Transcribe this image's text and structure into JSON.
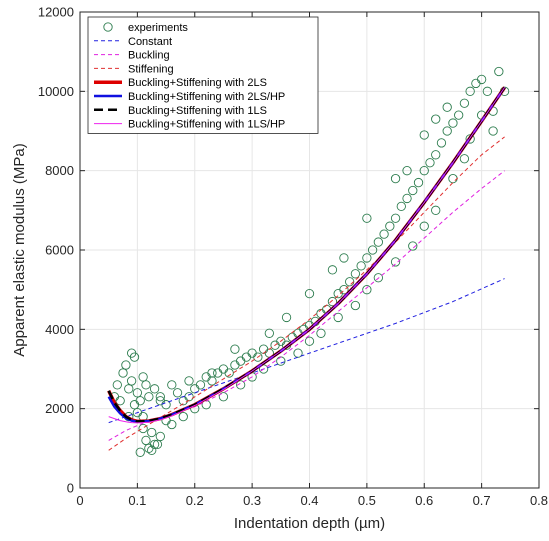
{
  "chart_data": {
    "type": "scatter",
    "title": "",
    "xlabel": "Indentation depth (µm)",
    "ylabel": "Apparent elastic modulus (MPa)",
    "xlim": [
      0,
      0.8
    ],
    "ylim": [
      0,
      12000
    ],
    "xticks": [
      0,
      0.1,
      0.2,
      0.3,
      0.4,
      0.5,
      0.6,
      0.7,
      0.8
    ],
    "xtick_labels": [
      "0",
      "0.1",
      "0.2",
      "0.3",
      "0.4",
      "0.5",
      "0.6",
      "0.7",
      "0.8"
    ],
    "yticks": [
      0,
      2000,
      4000,
      6000,
      8000,
      10000,
      12000
    ],
    "ytick_labels": [
      "0",
      "2000",
      "4000",
      "6000",
      "8000",
      "10000",
      "12000"
    ],
    "grid": true,
    "legend_position": "top-left",
    "scatter": {
      "name": "experiments",
      "color": "#2e7d4f",
      "marker": "open-circle",
      "x": [
        0.06,
        0.065,
        0.07,
        0.075,
        0.08,
        0.085,
        0.09,
        0.095,
        0.1,
        0.105,
        0.11,
        0.115,
        0.12,
        0.13,
        0.14,
        0.15,
        0.16,
        0.17,
        0.18,
        0.19,
        0.2,
        0.21,
        0.22,
        0.23,
        0.24,
        0.25,
        0.26,
        0.27,
        0.28,
        0.29,
        0.3,
        0.31,
        0.32,
        0.33,
        0.34,
        0.35,
        0.36,
        0.37,
        0.38,
        0.39,
        0.4,
        0.41,
        0.42,
        0.43,
        0.44,
        0.45,
        0.46,
        0.47,
        0.48,
        0.49,
        0.5,
        0.51,
        0.52,
        0.53,
        0.54,
        0.55,
        0.56,
        0.57,
        0.58,
        0.59,
        0.6,
        0.61,
        0.62,
        0.63,
        0.64,
        0.65,
        0.66,
        0.67,
        0.68,
        0.69,
        0.7,
        0.71,
        0.72,
        0.73,
        0.74,
        0.085,
        0.09,
        0.095,
        0.1,
        0.11,
        0.12,
        0.125,
        0.13,
        0.14,
        0.15,
        0.16,
        0.18,
        0.2,
        0.22,
        0.25,
        0.28,
        0.3,
        0.32,
        0.35,
        0.38,
        0.4,
        0.42,
        0.45,
        0.48,
        0.5,
        0.52,
        0.55,
        0.58,
        0.6,
        0.62,
        0.65,
        0.67,
        0.68,
        0.7,
        0.72,
        0.6,
        0.62,
        0.64,
        0.55,
        0.57,
        0.5,
        0.46,
        0.44,
        0.4,
        0.36,
        0.33,
        0.27,
        0.23,
        0.19,
        0.14,
        0.11,
        0.105,
        0.115,
        0.125,
        0.135
      ],
      "y": [
        2300,
        2600,
        2200,
        2900,
        3100,
        2500,
        2700,
        3300,
        2400,
        2200,
        2800,
        2600,
        2300,
        2500,
        2300,
        2100,
        2600,
        2400,
        2200,
        2700,
        2500,
        2600,
        2800,
        2700,
        2900,
        3000,
        2900,
        3100,
        3200,
        3300,
        3400,
        3300,
        3500,
        3400,
        3600,
        3700,
        3600,
        3800,
        3900,
        4000,
        4100,
        4200,
        4400,
        4500,
        4700,
        4900,
        5000,
        5200,
        5400,
        5600,
        5800,
        6000,
        6200,
        6400,
        6600,
        6800,
        7100,
        7300,
        7500,
        7700,
        8000,
        8200,
        8400,
        8700,
        9000,
        9200,
        9400,
        9700,
        10000,
        10200,
        10300,
        10000,
        9500,
        10500,
        10000,
        1800,
        3400,
        2100,
        1900,
        1500,
        1000,
        950,
        1100,
        1300,
        1700,
        1600,
        1800,
        2000,
        2100,
        2300,
        2600,
        2800,
        3000,
        3200,
        3400,
        3700,
        3900,
        4300,
        4600,
        5000,
        5300,
        5700,
        6100,
        6600,
        7000,
        7800,
        8300,
        8800,
        9400,
        9000,
        8900,
        9300,
        9600,
        7800,
        8000,
        6800,
        5800,
        5500,
        4900,
        4300,
        3900,
        3500,
        2900,
        2300,
        2200,
        1800,
        900,
        1200,
        1400,
        1100
      ]
    },
    "series": [
      {
        "name": "Constant",
        "color": "#2020e0",
        "style": "dashed",
        "width": 1,
        "x": [
          0.05,
          0.15,
          0.25,
          0.35,
          0.45,
          0.55,
          0.65,
          0.74
        ],
        "y": [
          1650,
          2150,
          2650,
          3150,
          3650,
          4150,
          4700,
          5280
        ]
      },
      {
        "name": "Buckling",
        "color": "#e020e0",
        "style": "dashed",
        "width": 1,
        "x": [
          0.05,
          0.08,
          0.12,
          0.16,
          0.2,
          0.25,
          0.3,
          0.35,
          0.4,
          0.45,
          0.5,
          0.55,
          0.6,
          0.65,
          0.7,
          0.74
        ],
        "y": [
          1200,
          1450,
          1700,
          1850,
          2050,
          2400,
          2800,
          3300,
          3850,
          4450,
          5050,
          5650,
          6300,
          6950,
          7550,
          8000
        ]
      },
      {
        "name": "Stiffening",
        "color": "#e03030",
        "style": "dashed",
        "width": 1,
        "x": [
          0.05,
          0.08,
          0.12,
          0.16,
          0.2,
          0.25,
          0.3,
          0.35,
          0.4,
          0.45,
          0.5,
          0.55,
          0.6,
          0.65,
          0.7,
          0.74
        ],
        "y": [
          950,
          1250,
          1600,
          1950,
          2300,
          2750,
          3200,
          3700,
          4250,
          4850,
          5500,
          6200,
          6950,
          7700,
          8400,
          8850
        ]
      },
      {
        "name": "Buckling+Stiffening with 2LS",
        "color": "#dd0000",
        "style": "solid",
        "width": 3.5,
        "x": [
          0.05,
          0.06,
          0.07,
          0.08,
          0.09,
          0.1,
          0.12,
          0.14,
          0.16,
          0.2,
          0.25,
          0.3,
          0.35,
          0.4,
          0.45,
          0.5,
          0.55,
          0.6,
          0.65,
          0.7,
          0.74
        ],
        "y": [
          2450,
          2150,
          1950,
          1800,
          1720,
          1680,
          1690,
          1750,
          1850,
          2100,
          2500,
          2950,
          3450,
          4000,
          4650,
          5400,
          6250,
          7200,
          8200,
          9250,
          10100
        ]
      },
      {
        "name": "Buckling+Stiffening with 2LS/HP",
        "color": "#1010e0",
        "style": "solid",
        "width": 2.5,
        "x": [
          0.05,
          0.06,
          0.07,
          0.08,
          0.09,
          0.1,
          0.12,
          0.14,
          0.16,
          0.2,
          0.25,
          0.3,
          0.35,
          0.4,
          0.45,
          0.5,
          0.55,
          0.6,
          0.65,
          0.7,
          0.74
        ],
        "y": [
          2300,
          2050,
          1880,
          1760,
          1700,
          1670,
          1690,
          1750,
          1850,
          2100,
          2500,
          2950,
          3450,
          4000,
          4650,
          5400,
          6250,
          7200,
          8200,
          9250,
          10100
        ]
      },
      {
        "name": "Buckling+Stiffening with 1LS",
        "color": "#000000",
        "style": "dashed",
        "width": 2.5,
        "x": [
          0.05,
          0.06,
          0.07,
          0.08,
          0.09,
          0.1,
          0.12,
          0.14,
          0.16,
          0.2,
          0.25,
          0.3,
          0.35,
          0.4,
          0.45,
          0.5,
          0.55,
          0.6,
          0.65,
          0.7,
          0.74
        ],
        "y": [
          2450,
          2150,
          1950,
          1800,
          1720,
          1680,
          1690,
          1750,
          1850,
          2100,
          2500,
          2950,
          3450,
          4000,
          4650,
          5400,
          6250,
          7200,
          8200,
          9250,
          10100
        ]
      },
      {
        "name": "Buckling+Stiffening with 1LS/HP",
        "color": "#ee22ee",
        "style": "solid",
        "width": 1,
        "x": [
          0.05,
          0.06,
          0.07,
          0.08,
          0.09,
          0.1,
          0.12,
          0.14,
          0.16,
          0.2,
          0.25,
          0.3,
          0.35,
          0.4,
          0.45,
          0.5,
          0.55,
          0.6,
          0.65,
          0.7,
          0.74
        ],
        "y": [
          1800,
          1750,
          1700,
          1670,
          1650,
          1640,
          1660,
          1720,
          1820,
          2080,
          2480,
          2950,
          3450,
          4000,
          4650,
          5400,
          6250,
          7200,
          8200,
          9250,
          10100
        ]
      }
    ]
  }
}
